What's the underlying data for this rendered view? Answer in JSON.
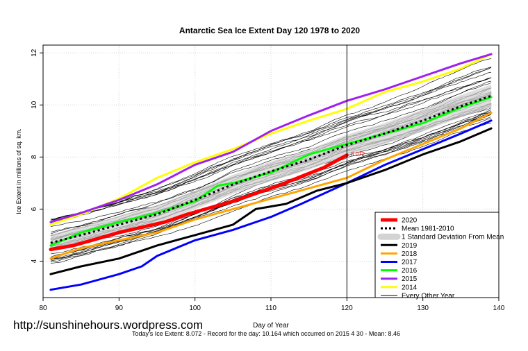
{
  "chart_data": {
    "type": "line",
    "title": "Antarctic Sea Ice Extent Day 120 1978 to 2020",
    "xlabel": "Day of Year",
    "ylabel": "Ice Extent in millions of sq. km.",
    "xlim": [
      80,
      140
    ],
    "ylim": [
      2.6,
      12.3
    ],
    "x_ticks": [
      80,
      90,
      100,
      110,
      120,
      130,
      140
    ],
    "y_ticks": [
      4,
      6,
      8,
      10,
      12
    ],
    "grid": true,
    "legend_position": "bottom-right",
    "vertical_marker_day": 120,
    "current_value_label": "8.072",
    "std_band_color": "#d3d3d3",
    "series": [
      {
        "name": "2020",
        "color": "#ff0000",
        "points": [
          [
            81,
            4.45
          ],
          [
            84,
            4.6
          ],
          [
            87,
            4.85
          ],
          [
            90,
            5.1
          ],
          [
            93,
            5.3
          ],
          [
            96,
            5.5
          ],
          [
            99,
            5.8
          ],
          [
            102,
            6.05
          ],
          [
            105,
            6.3
          ],
          [
            108,
            6.6
          ],
          [
            111,
            6.9
          ],
          [
            114,
            7.25
          ],
          [
            117,
            7.6
          ],
          [
            120,
            8.07
          ]
        ]
      },
      {
        "name": "Mean 1981-2010",
        "color": "#000000",
        "points": [
          [
            81,
            4.7
          ],
          [
            85,
            5.0
          ],
          [
            90,
            5.4
          ],
          [
            95,
            5.8
          ],
          [
            100,
            6.35
          ],
          [
            105,
            6.95
          ],
          [
            110,
            7.45
          ],
          [
            115,
            7.9
          ],
          [
            120,
            8.46
          ],
          [
            125,
            8.9
          ],
          [
            130,
            9.4
          ],
          [
            135,
            9.95
          ],
          [
            139,
            10.35
          ]
        ]
      },
      {
        "name": "2019",
        "color": "#000000",
        "points": [
          [
            81,
            3.5
          ],
          [
            85,
            3.8
          ],
          [
            90,
            4.1
          ],
          [
            95,
            4.6
          ],
          [
            100,
            5.0
          ],
          [
            105,
            5.4
          ],
          [
            108,
            6.0
          ],
          [
            112,
            6.2
          ],
          [
            116,
            6.7
          ],
          [
            120,
            7.0
          ],
          [
            125,
            7.5
          ],
          [
            130,
            8.1
          ],
          [
            135,
            8.6
          ],
          [
            139,
            9.1
          ]
        ]
      },
      {
        "name": "2018",
        "color": "#ffa500",
        "points": [
          [
            81,
            4.1
          ],
          [
            85,
            4.5
          ],
          [
            90,
            4.8
          ],
          [
            95,
            5.1
          ],
          [
            100,
            5.6
          ],
          [
            105,
            6.0
          ],
          [
            110,
            6.4
          ],
          [
            115,
            6.8
          ],
          [
            120,
            7.2
          ],
          [
            125,
            7.9
          ],
          [
            130,
            8.5
          ],
          [
            135,
            9.1
          ],
          [
            139,
            9.7
          ]
        ]
      },
      {
        "name": "2017",
        "color": "#0000ff",
        "points": [
          [
            81,
            2.9
          ],
          [
            85,
            3.1
          ],
          [
            90,
            3.5
          ],
          [
            93,
            3.8
          ],
          [
            95,
            4.2
          ],
          [
            100,
            4.8
          ],
          [
            105,
            5.2
          ],
          [
            110,
            5.7
          ],
          [
            114,
            6.2
          ],
          [
            117,
            6.6
          ],
          [
            120,
            7.0
          ],
          [
            125,
            7.7
          ],
          [
            130,
            8.3
          ],
          [
            135,
            8.9
          ],
          [
            139,
            9.4
          ]
        ]
      },
      {
        "name": "2016",
        "color": "#00ff00",
        "points": [
          [
            81,
            4.6
          ],
          [
            85,
            5.1
          ],
          [
            90,
            5.5
          ],
          [
            95,
            5.85
          ],
          [
            100,
            6.3
          ],
          [
            103,
            6.9
          ],
          [
            105,
            7.0
          ],
          [
            110,
            7.4
          ],
          [
            115,
            8.1
          ],
          [
            120,
            8.5
          ],
          [
            125,
            8.9
          ],
          [
            130,
            9.3
          ],
          [
            135,
            9.9
          ],
          [
            139,
            10.3
          ]
        ]
      },
      {
        "name": "2015",
        "color": "#a020f0",
        "points": [
          [
            81,
            5.5
          ],
          [
            85,
            5.85
          ],
          [
            90,
            6.35
          ],
          [
            95,
            6.95
          ],
          [
            100,
            7.7
          ],
          [
            105,
            8.2
          ],
          [
            110,
            9.0
          ],
          [
            115,
            9.6
          ],
          [
            120,
            10.16
          ],
          [
            125,
            10.6
          ],
          [
            130,
            11.1
          ],
          [
            135,
            11.6
          ],
          [
            139,
            11.95
          ]
        ]
      },
      {
        "name": "2014",
        "color": "#ffff00",
        "points": [
          [
            81,
            5.4
          ],
          [
            85,
            5.8
          ],
          [
            90,
            6.4
          ],
          [
            95,
            7.2
          ],
          [
            100,
            7.8
          ],
          [
            105,
            8.3
          ],
          [
            110,
            8.9
          ],
          [
            115,
            9.4
          ],
          [
            120,
            9.85
          ],
          [
            125,
            10.5
          ],
          [
            130,
            10.9
          ],
          [
            135,
            11.4
          ],
          [
            139,
            11.95
          ]
        ]
      },
      {
        "name": "Every Other Year",
        "color": "#000000"
      }
    ]
  },
  "watermark": "http://sunshinehours.wordpress.com",
  "footer": "Today's Ice Extent: 8.072  - Record for the day: 10.164 which occurred on 2015 4 30  - Mean: 8.46"
}
